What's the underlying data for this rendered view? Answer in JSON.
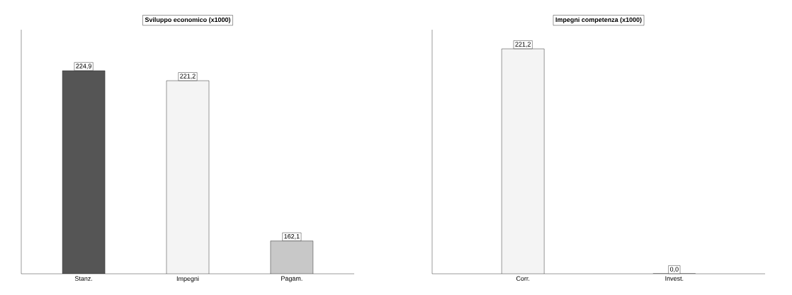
{
  "chart_data": [
    {
      "type": "bar",
      "title": "Sviluppo economico (x1000)",
      "categories": [
        "Stanz.",
        "Impegni",
        "Pagam."
      ],
      "values": [
        224.9,
        221.2,
        162.1
      ],
      "colors": [
        "#555555",
        "#f4f4f4",
        "#c8c8c8"
      ],
      "value_labels": [
        "224,9",
        "221,2",
        "162,1"
      ],
      "ylim": [
        150,
        240
      ],
      "tick_labels": "x"
    },
    {
      "type": "bar",
      "title": "Impegni competenza (x1000)",
      "categories": [
        "Corr.",
        "Invest."
      ],
      "values": [
        221.2,
        0.0
      ],
      "colors": [
        "#f4f4f4",
        "#f4f4f4"
      ],
      "value_labels": [
        "221,2",
        "0,0"
      ],
      "ylim": [
        0,
        240
      ],
      "tick_labels": "x"
    }
  ]
}
